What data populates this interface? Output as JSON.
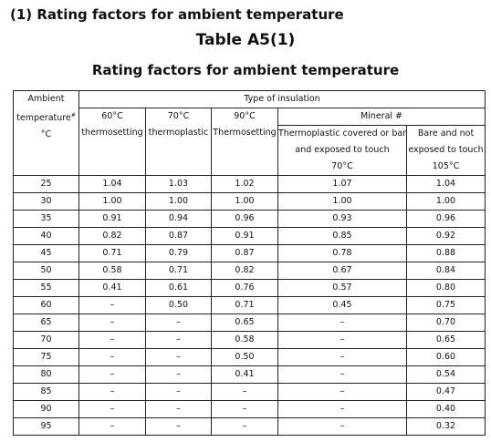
{
  "heading": "(1) Rating factors for ambient temperature",
  "table_label": "Table A5(1)",
  "table_title": "Rating factors for ambient temperature",
  "table": {
    "header": {
      "ambient": [
        "Ambient",
        "temperature",
        "#",
        "°C"
      ],
      "type_of_insulation": "Type of insulation",
      "columns": [
        {
          "temp": "60°C",
          "name": "thermosetting"
        },
        {
          "temp": "70°C",
          "name": "thermoplastic"
        },
        {
          "temp": "90°C",
          "name": "Thermosetting"
        }
      ],
      "mineral": "Mineral #",
      "mineral_columns": [
        [
          "Thermoplastic covered or bare",
          "and exposed to touch",
          "70°C"
        ],
        [
          "Bare and not",
          "exposed to touch",
          "105°C"
        ]
      ]
    },
    "rows": [
      [
        "25",
        "1.04",
        "1.03",
        "1.02",
        "1.07",
        "1.04"
      ],
      [
        "30",
        "1.00",
        "1.00",
        "1.00",
        "1.00",
        "1.00"
      ],
      [
        "35",
        "0.91",
        "0.94",
        "0.96",
        "0.93",
        "0.96"
      ],
      [
        "40",
        "0.82",
        "0.87",
        "0.91",
        "0.85",
        "0.92"
      ],
      [
        "45",
        "0.71",
        "0.79",
        "0.87",
        "0.78",
        "0.88"
      ],
      [
        "50",
        "0.58",
        "0.71",
        "0.82",
        "0.67",
        "0.84"
      ],
      [
        "55",
        "0.41",
        "0.61",
        "0.76",
        "0.57",
        "0.80"
      ],
      [
        "60",
        "–",
        "0.50",
        "0.71",
        "0.45",
        "0.75"
      ],
      [
        "65",
        "–",
        "–",
        "0.65",
        "–",
        "0.70"
      ],
      [
        "70",
        "–",
        "–",
        "0.58",
        "–",
        "0.65"
      ],
      [
        "75",
        "–",
        "–",
        "0.50",
        "–",
        "0.60"
      ],
      [
        "80",
        "–",
        "–",
        "0.41",
        "–",
        "0.54"
      ],
      [
        "85",
        "–",
        "–",
        "–",
        "–",
        "0.47"
      ],
      [
        "90",
        "–",
        "–",
        "–",
        "–",
        "0.40"
      ],
      [
        "95",
        "–",
        "–",
        "–",
        "–",
        "0.32"
      ]
    ]
  }
}
